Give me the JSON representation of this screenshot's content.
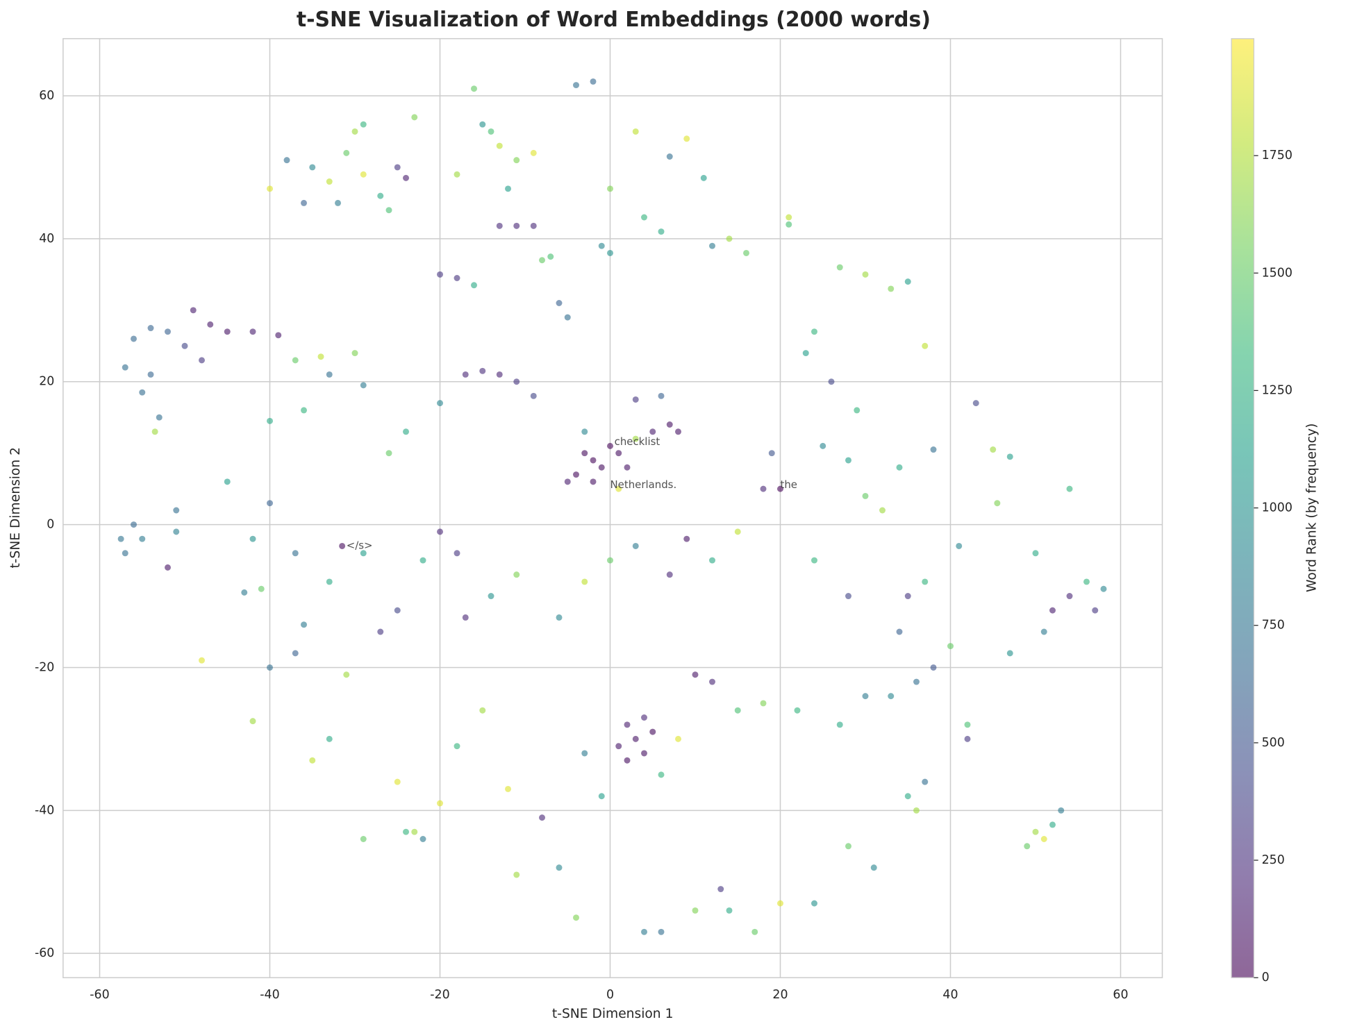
{
  "chart_data": {
    "type": "scatter",
    "title": "t-SNE Visualization of Word Embeddings (2000 words)",
    "xlabel": "t-SNE Dimension 1",
    "ylabel": "t-SNE Dimension 2",
    "colorbar_label": "Word Rank (by frequency)",
    "colormap": "viridis",
    "alpha": 0.6,
    "xlim": [
      -64.3,
      64.9
    ],
    "ylim": [
      -63.4,
      68.0
    ],
    "clim": [
      0,
      1999
    ],
    "xticks": [
      -60,
      -40,
      -20,
      0,
      20,
      40,
      60
    ],
    "yticks": [
      -60,
      -40,
      -20,
      0,
      20,
      40,
      60
    ],
    "cticks": [
      0,
      250,
      500,
      750,
      1000,
      1250,
      1500,
      1750
    ],
    "grid": true,
    "x": [
      -57,
      -56,
      -54,
      -52,
      -54,
      -55,
      -53,
      -53.5,
      -49,
      -47,
      -45,
      -42,
      -39,
      -48,
      -50,
      -57.5,
      -57,
      -56,
      -55,
      -51,
      -51,
      -52,
      -45,
      -42,
      -40,
      -40,
      -36,
      -33,
      -30,
      -29,
      -34,
      -37,
      -35,
      -33,
      -31,
      -29,
      -27,
      -25,
      -24,
      -23,
      -32,
      -30,
      -38,
      -40,
      -36,
      -29,
      -26,
      -13,
      -11,
      -9,
      -14,
      -16,
      -18,
      -12,
      -15,
      -4,
      -2,
      -11,
      -13,
      -9,
      -20,
      -18,
      -16,
      -8,
      -7,
      -6,
      -5,
      -1,
      0,
      0,
      3,
      4,
      6,
      7,
      9,
      11,
      12,
      14,
      16,
      21,
      21,
      -17,
      -15,
      -13,
      -11,
      -9,
      -20,
      -24,
      -26,
      -3,
      -2,
      -1,
      -4,
      0,
      1,
      -2,
      2,
      -5,
      3,
      -3,
      1,
      8,
      7,
      5,
      3,
      6,
      20,
      18,
      19,
      25,
      28,
      30,
      32,
      34,
      38,
      41,
      43,
      45,
      47,
      45.5,
      54,
      27,
      30,
      33,
      35,
      37,
      24,
      23,
      26,
      29,
      -31.5,
      -37,
      -41,
      -43,
      -33,
      -29,
      -20,
      -18,
      -22,
      -25,
      -27,
      -17,
      -14,
      -11,
      -6,
      -3,
      0,
      3,
      7,
      9,
      12,
      15,
      -40,
      -37,
      -36,
      -31,
      -33,
      -35,
      -29,
      -24,
      -22,
      -25,
      -18,
      -15,
      -12,
      -11,
      -8,
      -6,
      -4,
      -3,
      -1,
      2,
      3,
      4,
      5,
      1,
      2,
      4,
      8,
      6,
      4,
      6,
      10,
      14,
      17,
      20,
      24,
      13,
      10,
      12,
      15,
      18,
      22,
      27,
      30,
      33,
      36,
      38,
      40,
      42,
      42,
      35,
      37,
      34,
      28,
      24,
      47,
      50,
      51,
      52,
      54,
      56,
      58,
      57,
      50,
      51,
      52,
      53,
      49,
      28,
      31,
      35,
      37,
      36,
      -48,
      -42,
      -23,
      -20
    ],
    "y": [
      22,
      26,
      27.5,
      27,
      21,
      18.5,
      15,
      13,
      30,
      28,
      27,
      27,
      26.5,
      23,
      25,
      -2,
      -4,
      0,
      -2,
      -1,
      2,
      -6,
      6,
      -2,
      3,
      14.5,
      16,
      21,
      24,
      19.5,
      23.5,
      23,
      50,
      48,
      52,
      49,
      46,
      50,
      48.5,
      57,
      45,
      55,
      51,
      47,
      45,
      56,
      44,
      53,
      51,
      52,
      55,
      61,
      49,
      47,
      56,
      61.5,
      62,
      41.8,
      41.8,
      41.8,
      35,
      34.5,
      33.5,
      37,
      37.5,
      31,
      29,
      39,
      38,
      47,
      55,
      43,
      41,
      51.5,
      54,
      48.5,
      39,
      40,
      38,
      43,
      42,
      21,
      21.5,
      21,
      20,
      18,
      17,
      13,
      10,
      10,
      9,
      8,
      7,
      11,
      10,
      6,
      8,
      6,
      12,
      13,
      5,
      13,
      14,
      13,
      17.5,
      18,
      5,
      5,
      10,
      11,
      9,
      4,
      2,
      8,
      10.5,
      -3,
      17,
      10.5,
      9.5,
      3,
      5,
      36,
      35,
      33,
      34,
      25,
      27,
      24,
      20,
      16,
      -3,
      -4,
      -9,
      -9.5,
      -8,
      -4,
      -1,
      -4,
      -5,
      -12,
      -15,
      -13,
      -10,
      -7,
      -13,
      -8,
      -5,
      -3,
      -7,
      -2,
      -5,
      -1,
      -20,
      -18,
      -14,
      -21,
      -30,
      -33,
      -44,
      -43,
      -44,
      -36,
      -31,
      -26,
      -37,
      -49,
      -41,
      -48,
      -55,
      -32,
      -38,
      -28,
      -30,
      -32,
      -29,
      -31,
      -33,
      -27,
      -30,
      -35,
      -57,
      -57,
      -54,
      -54,
      -57,
      -53,
      -53,
      -51,
      -21,
      -22,
      -26,
      -25,
      -26,
      -28,
      -24,
      -24,
      -22,
      -20,
      -17,
      -28,
      -30,
      -10,
      -8,
      -15,
      -10,
      -5,
      -18,
      -4,
      -15,
      -12,
      -10,
      -8,
      -9,
      -12,
      -43,
      -44,
      -42,
      -40,
      -45,
      -45,
      -48,
      -38,
      -36,
      -40,
      -19,
      -27.5,
      -43,
      -39
    ],
    "c": [
      700,
      650,
      620,
      600,
      640,
      680,
      700,
      1700,
      150,
      120,
      100,
      160,
      120,
      300,
      400,
      750,
      700,
      650,
      800,
      850,
      700,
      100,
      1100,
      1000,
      600,
      1200,
      1300,
      700,
      1600,
      800,
      1800,
      1500,
      900,
      1800,
      1500,
      1900,
      1200,
      300,
      150,
      1600,
      800,
      1700,
      700,
      1900,
      600,
      1300,
      1400,
      1800,
      1600,
      1900,
      1400,
      1500,
      1700,
      1100,
      1000,
      700,
      650,
      200,
      220,
      210,
      300,
      280,
      1200,
      1500,
      1400,
      600,
      700,
      900,
      1000,
      1600,
      1800,
      1300,
      1200,
      700,
      1900,
      1100,
      800,
      1700,
      1500,
      1800,
      1400,
      200,
      250,
      180,
      300,
      400,
      900,
      1200,
      1500,
      50,
      30,
      60,
      40,
      20,
      70,
      90,
      100,
      150,
      1700,
      900,
      1900,
      100,
      80,
      150,
      300,
      600,
      10,
      200,
      500,
      900,
      1100,
      1500,
      1700,
      1200,
      700,
      900,
      400,
      1700,
      1100,
      1600,
      1300,
      1500,
      1700,
      1600,
      1100,
      1800,
      1300,
      1100,
      400,
      1300,
      50,
      700,
      1500,
      800,
      1200,
      1100,
      200,
      300,
      1200,
      400,
      300,
      200,
      1000,
      1600,
      900,
      1800,
      1500,
      800,
      200,
      100,
      1200,
      1800,
      700,
      600,
      800,
      1700,
      1200,
      1800,
      1500,
      1300,
      800,
      1900,
      1300,
      1700,
      1900,
      1700,
      200,
      900,
      1600,
      800,
      1100,
      150,
      100,
      80,
      50,
      120,
      60,
      200,
      1900,
      1300,
      800,
      700,
      1600,
      1200,
      1500,
      1900,
      1000,
      300,
      100,
      200,
      1400,
      1600,
      1300,
      1200,
      800,
      900,
      700,
      500,
      1500,
      1400,
      300,
      300,
      1300,
      600,
      400,
      1300,
      1000,
      1200,
      800,
      150,
      200,
      1300,
      900,
      300,
      1700,
      1900,
      1200,
      800,
      1500,
      1500,
      900,
      1200,
      700,
      1700,
      1900,
      1700,
      1700,
      1900
    ],
    "annotations": [
      {
        "text": "checklist",
        "x": 0.5,
        "y": 11.5
      },
      {
        "text": "Netherlands.",
        "x": 0,
        "y": 5.5
      },
      {
        "text": "the",
        "x": 20,
        "y": 5.5
      },
      {
        "text": "</s>",
        "x": -31,
        "y": -3
      }
    ]
  }
}
